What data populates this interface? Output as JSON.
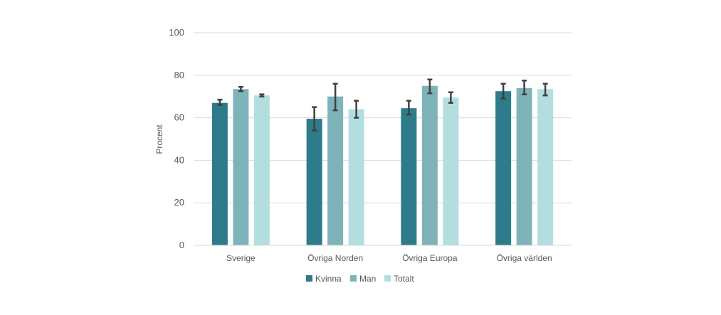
{
  "chart_data": {
    "type": "bar",
    "ylabel": "Procent",
    "xlabel": "",
    "ylim": [
      0,
      100
    ],
    "yticks": [
      0,
      20,
      40,
      60,
      80,
      100
    ],
    "grid": true,
    "legend_position": "bottom",
    "categories": [
      "Sverige",
      "Övriga Norden",
      "Övriga Europa",
      "Övriga världen"
    ],
    "series": [
      {
        "name": "Kvinna",
        "color": "#2e7b8b",
        "values": [
          67,
          59.5,
          64.5,
          72.5
        ],
        "error_low": [
          66,
          54,
          61.5,
          69
        ],
        "error_high": [
          68.5,
          65,
          68,
          76
        ]
      },
      {
        "name": "Man",
        "color": "#7fb3ba",
        "values": [
          73.5,
          70,
          75,
          74
        ],
        "error_low": [
          72.5,
          63.5,
          71.5,
          71
        ],
        "error_high": [
          74.5,
          76,
          78,
          77.5
        ]
      },
      {
        "name": "Totalt",
        "color": "#b3dee0",
        "values": [
          70.5,
          64,
          69.5,
          73.5
        ],
        "error_low": [
          70,
          60,
          67,
          70.5
        ],
        "error_high": [
          71,
          68,
          72,
          76
        ]
      }
    ]
  }
}
